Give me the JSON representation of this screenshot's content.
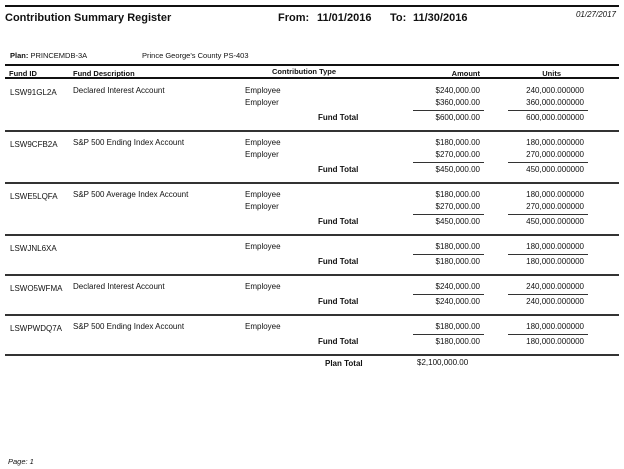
{
  "report": {
    "title": "Contribution Summary Register",
    "from_label": "From:",
    "from_date": "11/01/2016",
    "to_label": "To:",
    "to_date": "11/30/2016",
    "run_date": "01/27/2017",
    "plan_label": "Plan:",
    "plan_id": "PRINCEMDB-3A",
    "plan_name": "Prince George's County PS-403",
    "page": "Page: 1"
  },
  "columns": {
    "fund_id": "Fund ID",
    "fund_description": "Fund Description",
    "contribution_type": "Contribution Type",
    "amount": "Amount",
    "units": "Units"
  },
  "fund_total_label": "Fund Total",
  "funds": [
    {
      "id": "LSW91GL2A",
      "description": "Declared Interest Account",
      "rows": [
        {
          "type": "Employee",
          "amount": "$240,000.00",
          "units": "240,000.000000"
        },
        {
          "type": "Employer",
          "amount": "$360,000.00",
          "units": "360,000.000000"
        }
      ],
      "total_amount": "$600,000.00",
      "total_units": "600,000.000000"
    },
    {
      "id": "LSW9CFB2A",
      "description": "S&P 500 Ending Index Account",
      "rows": [
        {
          "type": "Employee",
          "amount": "$180,000.00",
          "units": "180,000.000000"
        },
        {
          "type": "Employer",
          "amount": "$270,000.00",
          "units": "270,000.000000"
        }
      ],
      "total_amount": "$450,000.00",
      "total_units": "450,000.000000"
    },
    {
      "id": "LSWE5LQFA",
      "description": "S&P 500 Average Index Account",
      "rows": [
        {
          "type": "Employee",
          "amount": "$180,000.00",
          "units": "180,000.000000"
        },
        {
          "type": "Employer",
          "amount": "$270,000.00",
          "units": "270,000.000000"
        }
      ],
      "total_amount": "$450,000.00",
      "total_units": "450,000.000000"
    },
    {
      "id": "LSWJNL6XA",
      "description": "",
      "rows": [
        {
          "type": "Employee",
          "amount": "$180,000.00",
          "units": "180,000.000000"
        }
      ],
      "total_amount": "$180,000.00",
      "total_units": "180,000.000000"
    },
    {
      "id": "LSWO5WFMA",
      "description": "Declared Interest Account",
      "rows": [
        {
          "type": "Employee",
          "amount": "$240,000.00",
          "units": "240,000.000000"
        }
      ],
      "total_amount": "$240,000.00",
      "total_units": "240,000.000000"
    },
    {
      "id": "LSWPWDQ7A",
      "description": "S&P 500 Ending Index Account",
      "rows": [
        {
          "type": "Employee",
          "amount": "$180,000.00",
          "units": "180,000.000000"
        }
      ],
      "total_amount": "$180,000.00",
      "total_units": "180,000.000000"
    }
  ],
  "plan_total": {
    "label": "Plan Total",
    "amount": "$2,100,000.00"
  }
}
